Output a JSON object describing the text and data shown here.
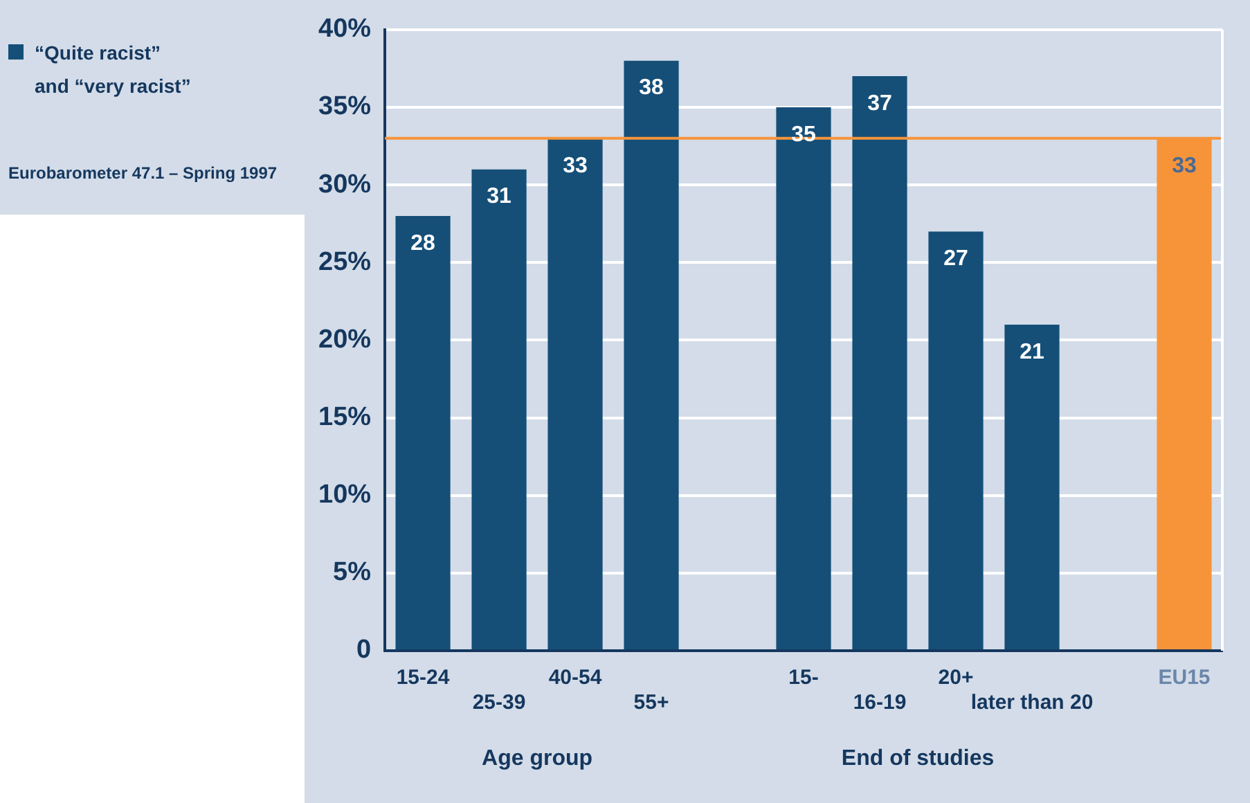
{
  "chart_data": {
    "type": "bar",
    "categories": [
      "15-24",
      "25-39",
      "40-54",
      "55+",
      null,
      "15-",
      "16-19",
      "20+",
      "later than 20",
      null,
      "EU15"
    ],
    "series": [
      {
        "name": "“Quite racist” and “very racist”",
        "color": "#154f78",
        "colors": [
          "#154f78",
          "#154f78",
          "#154f78",
          "#154f78",
          "#154f78",
          "#154f78",
          "#154f78",
          "#154f78",
          "#154f78",
          "#154f78",
          "#f7943a"
        ],
        "values": [
          28,
          31,
          33,
          38,
          null,
          35,
          37,
          27,
          21,
          null,
          33
        ]
      }
    ],
    "ylim": [
      0,
      40
    ],
    "yticks": [
      0,
      {
        "value": 5,
        "label": "5%"
      },
      {
        "value": 10,
        "label": "10%"
      },
      {
        "value": 15,
        "label": "15%"
      },
      {
        "value": 20,
        "label": "20%"
      },
      {
        "value": 25,
        "label": "25%"
      },
      {
        "value": 30,
        "label": "30%"
      },
      {
        "value": 35,
        "label": "35%"
      },
      {
        "value": 40,
        "label": "40%"
      }
    ],
    "grid": "y",
    "legend": "top left",
    "data_labels": true,
    "ref_lines": [
      {
        "axis": "y",
        "value": 33,
        "color": "#f7943a"
      }
    ],
    "annotations": [
      "Age group",
      "End of studies",
      "Eurobarometer 47.1 – Spring 1997"
    ]
  }
}
